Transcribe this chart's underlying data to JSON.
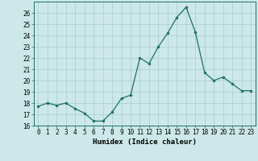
{
  "x": [
    0,
    1,
    2,
    3,
    4,
    5,
    6,
    7,
    8,
    9,
    10,
    11,
    12,
    13,
    14,
    15,
    16,
    17,
    18,
    19,
    20,
    21,
    22,
    23
  ],
  "y": [
    17.7,
    18.0,
    17.8,
    18.0,
    17.5,
    17.1,
    16.4,
    16.4,
    17.2,
    18.4,
    18.7,
    22.0,
    21.5,
    23.0,
    24.2,
    25.6,
    26.5,
    24.3,
    20.7,
    20.0,
    20.3,
    19.7,
    19.1,
    19.1
  ],
  "line_color": "#1e7060",
  "marker": "o",
  "marker_size": 2,
  "bg_color": "#cce8e8",
  "grid_color": "#aacccc",
  "xlabel": "Humidex (Indice chaleur)",
  "ylim": [
    16,
    27
  ],
  "xlim": [
    -0.5,
    23.5
  ],
  "yticks": [
    16,
    17,
    18,
    19,
    20,
    21,
    22,
    23,
    24,
    25,
    26
  ],
  "xticks": [
    0,
    1,
    2,
    3,
    4,
    5,
    6,
    7,
    8,
    9,
    10,
    11,
    12,
    13,
    14,
    15,
    16,
    17,
    18,
    19,
    20,
    21,
    22,
    23
  ],
  "label_fontsize": 6.5,
  "tick_fontsize": 5.5
}
